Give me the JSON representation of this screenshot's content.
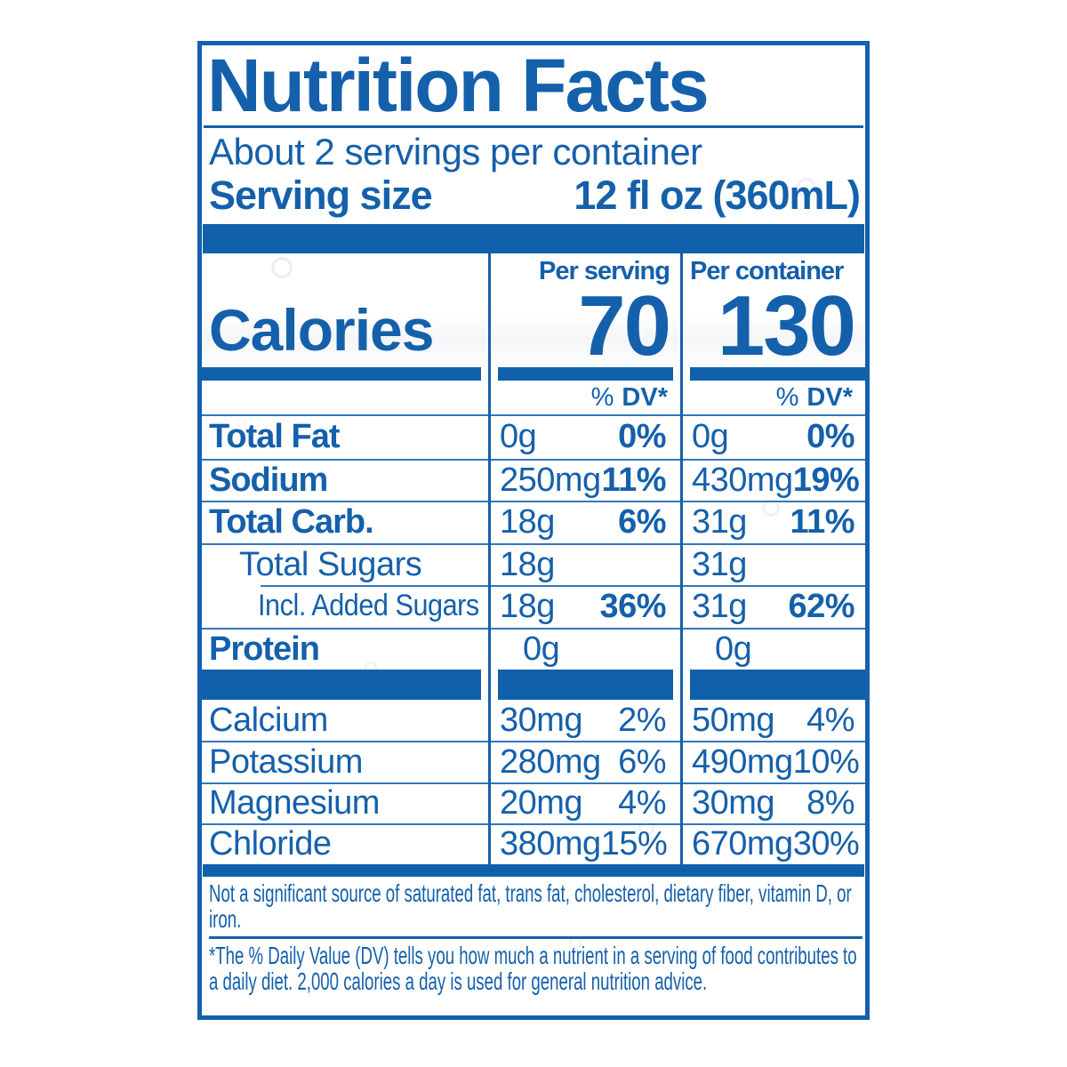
{
  "nf": {
    "title": "Nutrition Facts",
    "servings_line": "About 2 servings per container",
    "serving_size": {
      "label": "Serving size",
      "value": "12 fl oz (360mL)"
    },
    "calories": {
      "label": "Calories",
      "per_serving_header": "Per serving",
      "per_serving_value": "70",
      "per_container_header": "Per container",
      "per_container_value": "130"
    },
    "dv_header": {
      "percent": "%",
      "dv": "DV*"
    },
    "nutrients": [
      {
        "label": "Total Fat",
        "s_amt": "0g",
        "s_dv": "0%",
        "c_amt": "0g",
        "c_dv": "0%"
      },
      {
        "label": "Sodium",
        "s_amt": "250mg",
        "s_dv": "11%",
        "c_amt": "430mg",
        "c_dv": "19%"
      },
      {
        "label": "Total Carb.",
        "s_amt": "18g",
        "s_dv": "6%",
        "c_amt": "31g",
        "c_dv": "11%"
      },
      {
        "label": "Total Sugars",
        "s_amt": "18g",
        "s_dv": "",
        "c_amt": "31g",
        "c_dv": ""
      },
      {
        "label": "Incl. Added Sugars",
        "s_amt": "18g",
        "s_dv": "36%",
        "c_amt": "31g",
        "c_dv": "62%"
      },
      {
        "label": "Protein",
        "s_amt": "0g",
        "s_dv": "",
        "c_amt": "0g",
        "c_dv": ""
      }
    ],
    "minerals": [
      {
        "label": "Calcium",
        "s_amt": "30mg",
        "s_dv": "2%",
        "c_amt": "50mg",
        "c_dv": "4%"
      },
      {
        "label": "Potassium",
        "s_amt": "280mg",
        "s_dv": "6%",
        "c_amt": "490mg",
        "c_dv": "10%"
      },
      {
        "label": "Magnesium",
        "s_amt": "20mg",
        "s_dv": "4%",
        "c_amt": "30mg",
        "c_dv": "8%"
      },
      {
        "label": "Chloride",
        "s_amt": "380mg",
        "s_dv": "15%",
        "c_amt": "670mg",
        "c_dv": "30%"
      }
    ],
    "footnotes": {
      "not_significant": "Not a significant source of saturated fat, trans fat, cholesterol, dietary fiber, vitamin D, or iron.",
      "daily_value": "*The % Daily Value (DV) tells you how much a nutrient in a serving of food contributes to a daily diet. 2,000 calories a day is used for general nutrition advice."
    }
  },
  "colors": {
    "label_blue": "#1361ac",
    "bar_blue": "#1160ab",
    "hairline_blue": "#3377bb"
  }
}
